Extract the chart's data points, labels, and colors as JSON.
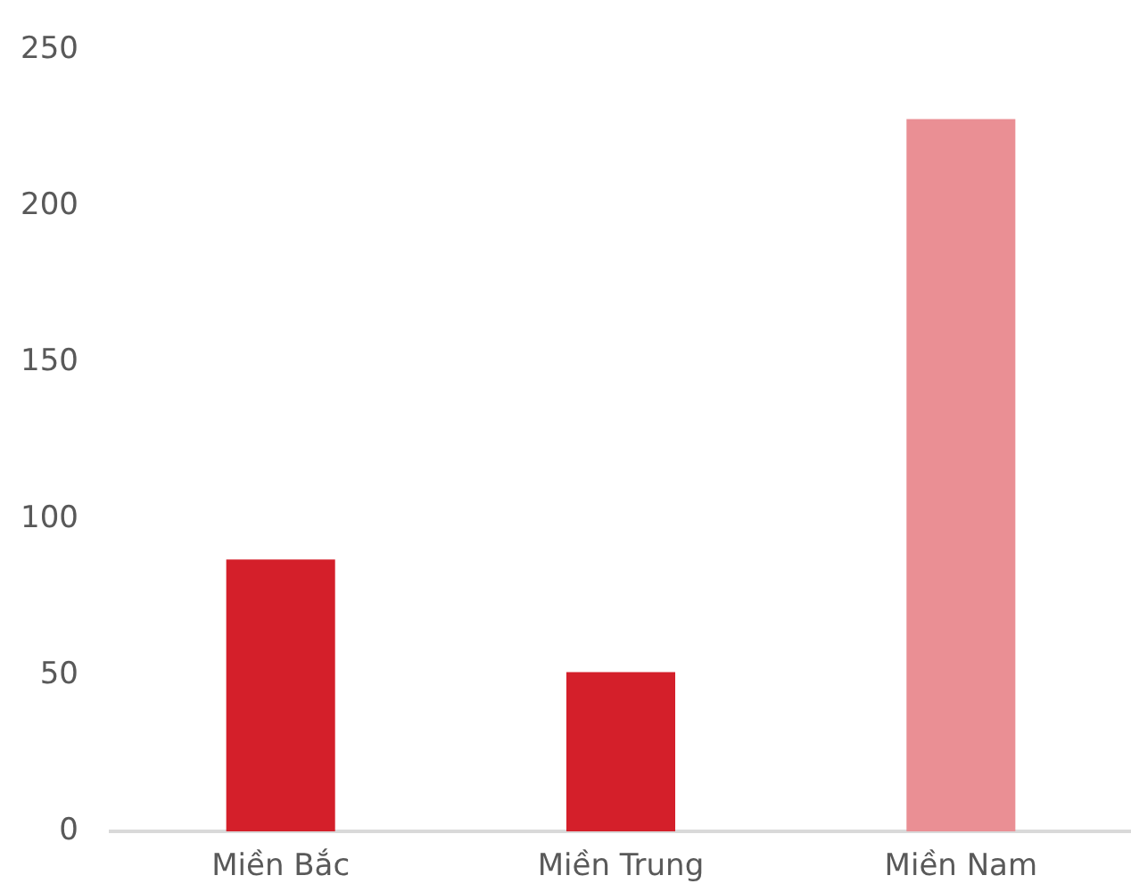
{
  "chart_data": {
    "type": "bar",
    "categories": [
      "Miền Bắc",
      "Miền Trung",
      "Miền Nam"
    ],
    "values": [
      87,
      51,
      228
    ],
    "colors": [
      "#d41f2a",
      "#d41f2a",
      "#ea8f94"
    ],
    "ylim": [
      0,
      250
    ],
    "yticks": [
      0,
      50,
      100,
      150,
      200,
      250
    ],
    "legend": false
  }
}
